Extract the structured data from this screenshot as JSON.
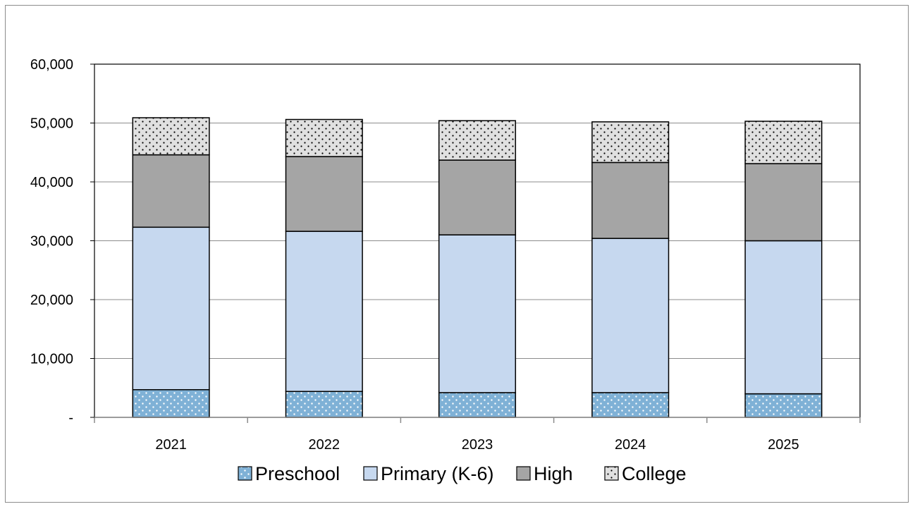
{
  "chart_data": {
    "type": "bar",
    "stacked": true,
    "categories": [
      "2021",
      "2022",
      "2023",
      "2024",
      "2025"
    ],
    "series": [
      {
        "name": "Preschool",
        "values": [
          4700,
          4400,
          4200,
          4200,
          4000
        ],
        "color": "#7fb1d6",
        "pattern": "dots-white"
      },
      {
        "name": "Primary (K-6)",
        "values": [
          27600,
          27200,
          26800,
          26200,
          26000
        ],
        "color": "#c6d8ef",
        "pattern": "none"
      },
      {
        "name": "High",
        "values": [
          12300,
          12700,
          12700,
          12900,
          13100
        ],
        "color": "#a5a5a5",
        "pattern": "none"
      },
      {
        "name": "College",
        "values": [
          6300,
          6300,
          6700,
          6900,
          7200
        ],
        "color": "#e0e0e0",
        "pattern": "dots-black"
      }
    ],
    "yticks": [
      "-",
      "10,000",
      "20,000",
      "30,000",
      "40,000",
      "50,000",
      "60,000"
    ],
    "ytick_values": [
      0,
      10000,
      20000,
      30000,
      40000,
      50000,
      60000
    ],
    "ylim": [
      0,
      60000
    ],
    "grid": true,
    "legend_position": "bottom",
    "title": "",
    "xlabel": "",
    "ylabel": ""
  }
}
